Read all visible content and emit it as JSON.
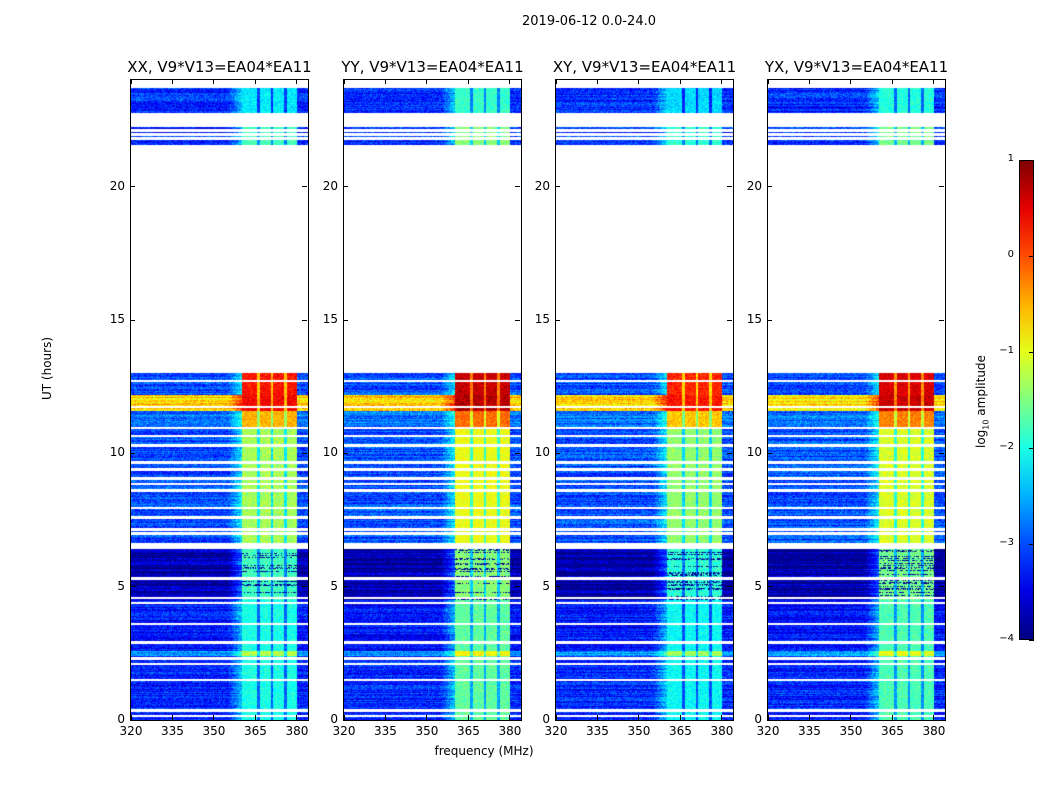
{
  "chart_data": {
    "type": "heatmap",
    "title": "2019-06-12 0.0-24.0",
    "xlabel": "frequency (MHz)",
    "ylabel": "UT (hours)",
    "xlim": [
      320,
      384
    ],
    "ylim": [
      0,
      24
    ],
    "xticks": [
      "320",
      "335",
      "350",
      "365",
      "380"
    ],
    "xtick_values": [
      320,
      335,
      350,
      365,
      380
    ],
    "yticks": [
      "0",
      "5",
      "10",
      "15",
      "20"
    ],
    "ytick_values": [
      0,
      5,
      10,
      15,
      20
    ],
    "colormap": "jet",
    "clim": [
      -4,
      1
    ],
    "colorbar": {
      "label_main": "log",
      "label_sub": "10",
      "label_rest": " amplitude",
      "ticks": [
        "1",
        "0",
        "−1",
        "−2",
        "−3",
        "−4"
      ],
      "tick_values": [
        1,
        0,
        -1,
        -2,
        -3,
        -4
      ]
    },
    "panels": [
      {
        "title": "XX, V9*V13=EA04*EA11",
        "band_offset": 0.0
      },
      {
        "title": "YY, V9*V13=EA04*EA11",
        "band_offset": 0.35
      },
      {
        "title": "XY, V9*V13=EA04*EA11",
        "band_offset": -0.1
      },
      {
        "title": "YX, V9*V13=EA04*EA11",
        "band_offset": 0.25
      }
    ],
    "rfi_band_mhz": [
      360,
      380
    ],
    "rfi_band_gaps_mhz": [
      366,
      371,
      376
    ],
    "segments": [
      {
        "ut": [
          0.0,
          2.4
        ],
        "background": -3.2,
        "band": -2.0
      },
      {
        "ut": [
          2.4,
          2.6
        ],
        "background": -2.6,
        "band": -1.2
      },
      {
        "ut": [
          2.6,
          4.5
        ],
        "background": -3.3,
        "band": -2.0
      },
      {
        "ut": [
          4.5,
          6.4
        ],
        "background": -3.7,
        "band": -1.8,
        "dark_rows": true
      },
      {
        "ut": [
          6.65,
          11.0
        ],
        "background": -3.0,
        "band": -1.3
      },
      {
        "ut": [
          11.0,
          11.6
        ],
        "background": -2.8,
        "band": -0.5
      },
      {
        "ut": [
          11.6,
          12.2
        ],
        "background": -0.7,
        "band": 0.4
      },
      {
        "ut": [
          12.2,
          13.0
        ],
        "background": -3.0,
        "band": 0.3
      },
      {
        "ut": [
          21.55,
          22.25
        ],
        "background": -3.2,
        "band": -1.8
      },
      {
        "ut": [
          22.75,
          23.7
        ],
        "background": -3.2,
        "band": -2.2
      }
    ],
    "flagged_ut": [
      0.15,
      0.35,
      1.5,
      2.1,
      2.3,
      2.9,
      3.6,
      4.38,
      4.57,
      5.3,
      7.0,
      7.15,
      7.6,
      7.94,
      8.6,
      8.84,
      9.06,
      9.4,
      9.66,
      10.3,
      10.64,
      10.94,
      11.73,
      12.71,
      21.8,
      21.95,
      22.1
    ]
  }
}
